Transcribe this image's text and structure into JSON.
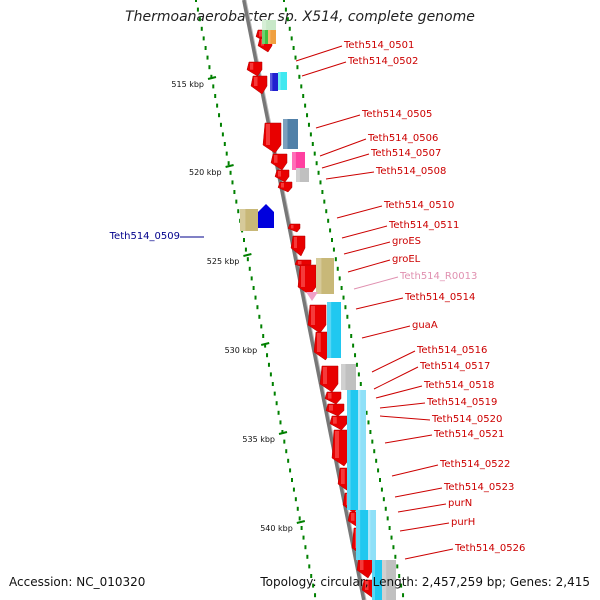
{
  "title": "Thermoanaerobacter sp. X514, complete genome",
  "footer": {
    "accession": "Accession: NC_010320",
    "summary": "Topology: circular; Length: 2,457,259 bp; Genes: 2,415"
  },
  "colors": {
    "cds": "#e80000",
    "rrna": "#c8b878",
    "trna": "#f0a0c8",
    "axis": "#888888",
    "tick": "#008000",
    "label_default": "#cc0000",
    "label_blue": "#00008b",
    "label_pink": "#e090b0"
  },
  "scale": {
    "ticks": [
      {
        "label": "515 kbp"
      },
      {
        "label": "520 kbp"
      },
      {
        "label": "525 kbp"
      },
      {
        "label": "530 kbp"
      },
      {
        "label": "535 kbp"
      },
      {
        "label": "540 kbp"
      }
    ]
  },
  "genes": [
    {
      "name": "Teth514_0501",
      "color": "#cc0000"
    },
    {
      "name": "Teth514_0502",
      "color": "#cc0000"
    },
    {
      "name": "Teth514_0505",
      "color": "#cc0000"
    },
    {
      "name": "Teth514_0506",
      "color": "#cc0000"
    },
    {
      "name": "Teth514_0507",
      "color": "#cc0000"
    },
    {
      "name": "Teth514_0508",
      "color": "#cc0000"
    },
    {
      "name": "Teth514_0509",
      "color": "#00008b"
    },
    {
      "name": "Teth514_0510",
      "color": "#cc0000"
    },
    {
      "name": "Teth514_0511",
      "color": "#cc0000"
    },
    {
      "name": "groES",
      "color": "#cc0000"
    },
    {
      "name": "groEL",
      "color": "#cc0000"
    },
    {
      "name": "Teth514_R0013",
      "color": "#e090b0"
    },
    {
      "name": "Teth514_0514",
      "color": "#cc0000"
    },
    {
      "name": "guaA",
      "color": "#cc0000"
    },
    {
      "name": "Teth514_0516",
      "color": "#cc0000"
    },
    {
      "name": "Teth514_0517",
      "color": "#cc0000"
    },
    {
      "name": "Teth514_0518",
      "color": "#cc0000"
    },
    {
      "name": "Teth514_0519",
      "color": "#cc0000"
    },
    {
      "name": "Teth514_0520",
      "color": "#cc0000"
    },
    {
      "name": "Teth514_0521",
      "color": "#cc0000"
    },
    {
      "name": "Teth514_0522",
      "color": "#cc0000"
    },
    {
      "name": "Teth514_0523",
      "color": "#cc0000"
    },
    {
      "name": "purN",
      "color": "#cc0000"
    },
    {
      "name": "purH",
      "color": "#cc0000"
    },
    {
      "name": "Teth514_0526",
      "color": "#cc0000"
    }
  ]
}
